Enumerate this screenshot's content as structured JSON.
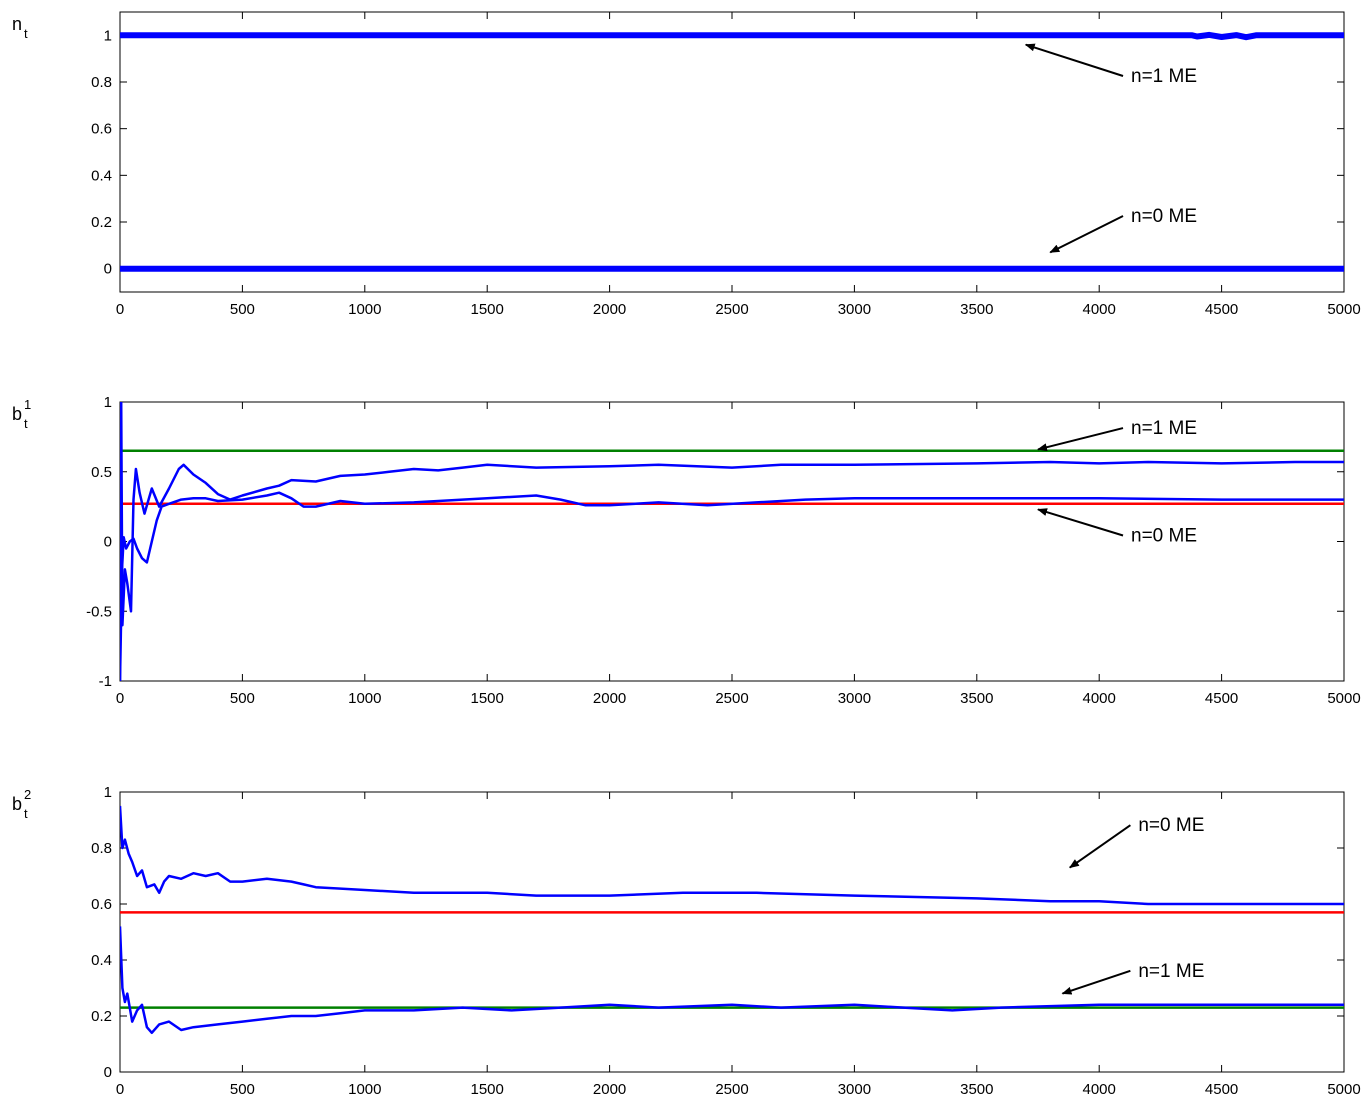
{
  "chart_data": [
    {
      "type": "line",
      "ylabel_base": "n",
      "ylabel_sub": "t",
      "ylabel_sup": "",
      "xlim": [
        0,
        5000
      ],
      "ylim": [
        -0.1,
        1.1
      ],
      "xticks": [
        0,
        500,
        1000,
        1500,
        2000,
        2500,
        3000,
        3500,
        4000,
        4500,
        5000
      ],
      "yticks": [
        0,
        0.2,
        0.4,
        0.6,
        0.8,
        1
      ],
      "grid": false,
      "series": [
        {
          "color": "#0000ff",
          "width": 6,
          "points": [
            [
              0,
              1
            ],
            [
              4380,
              1
            ],
            [
              4400,
              0.995
            ],
            [
              4450,
              1.002
            ],
            [
              4500,
              0.993
            ],
            [
              4560,
              1.001
            ],
            [
              4600,
              0.992
            ],
            [
              4640,
              1.0
            ],
            [
              5000,
              1
            ]
          ]
        },
        {
          "color": "#0000ff",
          "width": 6,
          "points": [
            [
              0,
              0
            ],
            [
              5000,
              0
            ]
          ]
        }
      ],
      "annotations": [
        {
          "text": "n=1 ME",
          "x": 4130,
          "y": 0.8,
          "arrow_to": [
            3700,
            0.96
          ]
        },
        {
          "text": "n=0 ME",
          "x": 4130,
          "y": 0.2,
          "arrow_to": [
            3800,
            0.07
          ]
        }
      ]
    },
    {
      "type": "line",
      "ylabel_base": "b",
      "ylabel_sub": "t",
      "ylabel_sup": "1",
      "xlim": [
        0,
        5000
      ],
      "ylim": [
        -1,
        1
      ],
      "xticks": [
        0,
        500,
        1000,
        1500,
        2000,
        2500,
        3000,
        3500,
        4000,
        4500,
        5000
      ],
      "yticks": [
        -1,
        -0.5,
        0,
        0.5,
        1
      ],
      "grid": false,
      "series": [
        {
          "color": "#008000",
          "width": 2.5,
          "points": [
            [
              0,
              0.65
            ],
            [
              5000,
              0.65
            ]
          ]
        },
        {
          "color": "#ff0000",
          "width": 2.5,
          "points": [
            [
              0,
              0.27
            ],
            [
              5000,
              0.27
            ]
          ]
        },
        {
          "color": "#0000ff",
          "width": 2.5,
          "points": [
            [
              0,
              -1
            ],
            [
              5,
              1
            ],
            [
              10,
              -0.6
            ],
            [
              20,
              -0.2
            ],
            [
              30,
              -0.3
            ],
            [
              45,
              -0.5
            ],
            [
              55,
              0.3
            ],
            [
              65,
              0.52
            ],
            [
              80,
              0.35
            ],
            [
              100,
              0.2
            ],
            [
              130,
              0.38
            ],
            [
              160,
              0.25
            ],
            [
              200,
              0.38
            ],
            [
              240,
              0.52
            ],
            [
              260,
              0.55
            ],
            [
              300,
              0.48
            ],
            [
              350,
              0.42
            ],
            [
              400,
              0.34
            ],
            [
              450,
              0.3
            ],
            [
              500,
              0.33
            ],
            [
              600,
              0.38
            ],
            [
              650,
              0.4
            ],
            [
              700,
              0.44
            ],
            [
              800,
              0.43
            ],
            [
              900,
              0.47
            ],
            [
              1000,
              0.48
            ],
            [
              1100,
              0.5
            ],
            [
              1200,
              0.52
            ],
            [
              1300,
              0.51
            ],
            [
              1400,
              0.53
            ],
            [
              1500,
              0.55
            ],
            [
              1700,
              0.53
            ],
            [
              2000,
              0.54
            ],
            [
              2200,
              0.55
            ],
            [
              2500,
              0.53
            ],
            [
              2700,
              0.55
            ],
            [
              3000,
              0.55
            ],
            [
              3500,
              0.56
            ],
            [
              3800,
              0.57
            ],
            [
              4000,
              0.56
            ],
            [
              4200,
              0.57
            ],
            [
              4500,
              0.56
            ],
            [
              4800,
              0.57
            ],
            [
              5000,
              0.57
            ]
          ]
        },
        {
          "color": "#0000ff",
          "width": 2.5,
          "points": [
            [
              0,
              -1
            ],
            [
              8,
              -0.2
            ],
            [
              15,
              0.03
            ],
            [
              25,
              -0.05
            ],
            [
              40,
              0.0
            ],
            [
              55,
              0.02
            ],
            [
              70,
              -0.05
            ],
            [
              90,
              -0.12
            ],
            [
              110,
              -0.15
            ],
            [
              130,
              0.0
            ],
            [
              150,
              0.15
            ],
            [
              170,
              0.25
            ],
            [
              200,
              0.27
            ],
            [
              250,
              0.3
            ],
            [
              300,
              0.31
            ],
            [
              350,
              0.31
            ],
            [
              400,
              0.29
            ],
            [
              500,
              0.3
            ],
            [
              600,
              0.33
            ],
            [
              650,
              0.35
            ],
            [
              700,
              0.31
            ],
            [
              750,
              0.25
            ],
            [
              800,
              0.25
            ],
            [
              900,
              0.29
            ],
            [
              1000,
              0.27
            ],
            [
              1200,
              0.28
            ],
            [
              1500,
              0.31
            ],
            [
              1700,
              0.33
            ],
            [
              1800,
              0.3
            ],
            [
              1900,
              0.26
            ],
            [
              2000,
              0.26
            ],
            [
              2200,
              0.28
            ],
            [
              2400,
              0.26
            ],
            [
              2600,
              0.28
            ],
            [
              2800,
              0.3
            ],
            [
              3000,
              0.31
            ],
            [
              3500,
              0.31
            ],
            [
              4000,
              0.31
            ],
            [
              4500,
              0.3
            ],
            [
              5000,
              0.3
            ]
          ]
        }
      ],
      "annotations": [
        {
          "text": "n=1 ME",
          "x": 4130,
          "y": 0.77,
          "arrow_to": [
            3750,
            0.66
          ]
        },
        {
          "text": "n=0 ME",
          "x": 4130,
          "y": 0.0,
          "arrow_to": [
            3750,
            0.23
          ]
        }
      ]
    },
    {
      "type": "line",
      "ylabel_base": "b",
      "ylabel_sub": "t",
      "ylabel_sup": "2",
      "xlim": [
        0,
        5000
      ],
      "ylim": [
        0,
        1
      ],
      "xticks": [
        0,
        500,
        1000,
        1500,
        2000,
        2500,
        3000,
        3500,
        4000,
        4500,
        5000
      ],
      "yticks": [
        0,
        0.2,
        0.4,
        0.6,
        0.8,
        1
      ],
      "grid": false,
      "series": [
        {
          "color": "#ff0000",
          "width": 2.5,
          "points": [
            [
              0,
              0.57
            ],
            [
              5000,
              0.57
            ]
          ]
        },
        {
          "color": "#008000",
          "width": 2.5,
          "points": [
            [
              0,
              0.23
            ],
            [
              5000,
              0.23
            ]
          ]
        },
        {
          "color": "#0000ff",
          "width": 2.5,
          "points": [
            [
              0,
              0.95
            ],
            [
              10,
              0.8
            ],
            [
              20,
              0.83
            ],
            [
              35,
              0.78
            ],
            [
              50,
              0.75
            ],
            [
              70,
              0.7
            ],
            [
              90,
              0.72
            ],
            [
              110,
              0.66
            ],
            [
              140,
              0.67
            ],
            [
              160,
              0.64
            ],
            [
              180,
              0.68
            ],
            [
              200,
              0.7
            ],
            [
              250,
              0.69
            ],
            [
              300,
              0.71
            ],
            [
              350,
              0.7
            ],
            [
              400,
              0.71
            ],
            [
              450,
              0.68
            ],
            [
              500,
              0.68
            ],
            [
              600,
              0.69
            ],
            [
              700,
              0.68
            ],
            [
              750,
              0.67
            ],
            [
              800,
              0.66
            ],
            [
              1000,
              0.65
            ],
            [
              1200,
              0.64
            ],
            [
              1500,
              0.64
            ],
            [
              1700,
              0.63
            ],
            [
              2000,
              0.63
            ],
            [
              2300,
              0.64
            ],
            [
              2600,
              0.64
            ],
            [
              3000,
              0.63
            ],
            [
              3500,
              0.62
            ],
            [
              3800,
              0.61
            ],
            [
              4000,
              0.61
            ],
            [
              4200,
              0.6
            ],
            [
              5000,
              0.6
            ]
          ]
        },
        {
          "color": "#0000ff",
          "width": 2.5,
          "points": [
            [
              0,
              0.52
            ],
            [
              10,
              0.3
            ],
            [
              20,
              0.25
            ],
            [
              30,
              0.28
            ],
            [
              50,
              0.18
            ],
            [
              70,
              0.22
            ],
            [
              90,
              0.24
            ],
            [
              110,
              0.16
            ],
            [
              130,
              0.14
            ],
            [
              160,
              0.17
            ],
            [
              200,
              0.18
            ],
            [
              250,
              0.15
            ],
            [
              300,
              0.16
            ],
            [
              400,
              0.17
            ],
            [
              500,
              0.18
            ],
            [
              600,
              0.19
            ],
            [
              700,
              0.2
            ],
            [
              800,
              0.2
            ],
            [
              900,
              0.21
            ],
            [
              1000,
              0.22
            ],
            [
              1200,
              0.22
            ],
            [
              1400,
              0.23
            ],
            [
              1600,
              0.22
            ],
            [
              1800,
              0.23
            ],
            [
              2000,
              0.24
            ],
            [
              2200,
              0.23
            ],
            [
              2500,
              0.24
            ],
            [
              2700,
              0.23
            ],
            [
              3000,
              0.24
            ],
            [
              3200,
              0.23
            ],
            [
              3400,
              0.22
            ],
            [
              3600,
              0.23
            ],
            [
              4000,
              0.24
            ],
            [
              4500,
              0.24
            ],
            [
              5000,
              0.24
            ]
          ]
        }
      ],
      "annotations": [
        {
          "text": "n=0 ME",
          "x": 4160,
          "y": 0.86,
          "arrow_to": [
            3880,
            0.73
          ]
        },
        {
          "text": "n=1 ME",
          "x": 4160,
          "y": 0.34,
          "arrow_to": [
            3850,
            0.28
          ]
        }
      ]
    }
  ]
}
